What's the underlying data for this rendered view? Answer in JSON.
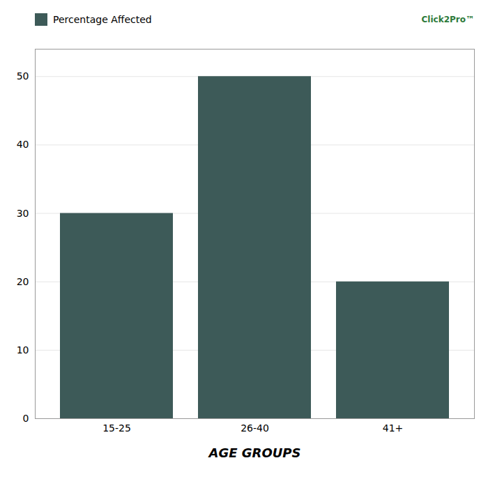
{
  "chart_data": {
    "type": "bar",
    "categories": [
      "15-25",
      "26-40",
      "41+"
    ],
    "series": [
      {
        "name": "Percentage Affected",
        "color": "#3d5a58",
        "values": [
          30,
          50,
          20
        ]
      }
    ],
    "xlabel": "AGE GROUPS",
    "ylim": [
      0,
      54
    ],
    "yticks": [
      0,
      10,
      20,
      30,
      40,
      50
    ],
    "grid": true,
    "legend": "upper left",
    "annotations": [
      "Click2Pro™"
    ]
  }
}
